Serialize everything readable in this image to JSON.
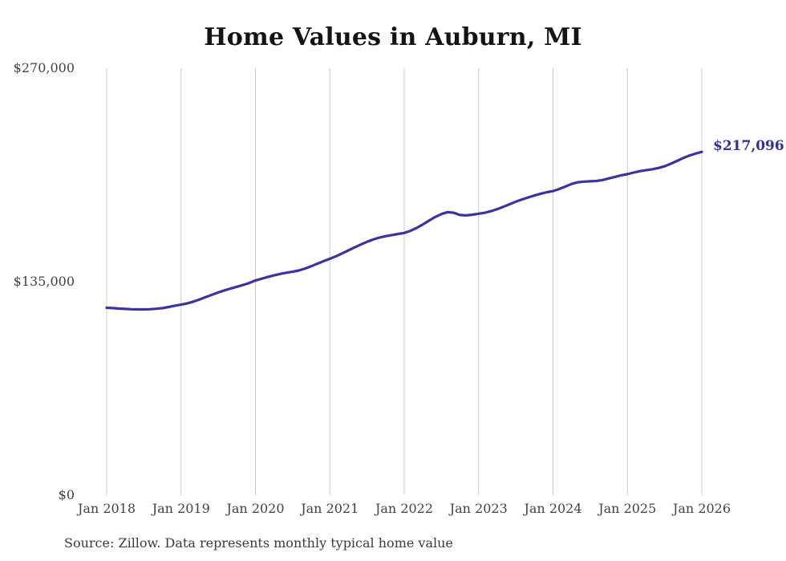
{
  "page": {
    "title": "Home Values in Auburn, MI",
    "source_note": "Source: Zillow. Data represents monthly typical home value"
  },
  "chart_data": {
    "type": "line",
    "title": "Home Values in Auburn, MI",
    "series_name": "Monthly typical home value",
    "xlabel": "",
    "ylabel": "",
    "ylim": [
      0,
      270000
    ],
    "grid": "vertical-only",
    "legend": "none",
    "x_tick_labels": [
      "Jan 2018",
      "Jan 2019",
      "Jan 2020",
      "Jan 2021",
      "Jan 2022",
      "Jan 2023",
      "Jan 2024",
      "Jan 2025",
      "Jan 2026"
    ],
    "y_ticks": [
      {
        "label": "$0",
        "value": 0
      },
      {
        "label": "$135,000",
        "value": 135000
      },
      {
        "label": "$270,000",
        "value": 270000
      }
    ],
    "x_monthly_range": "Jan 2018 to Jan 2026",
    "values": [
      118500,
      118300,
      118000,
      117800,
      117600,
      117500,
      117500,
      117600,
      117900,
      118300,
      119000,
      119800,
      120500,
      121300,
      122400,
      123800,
      125300,
      126800,
      128200,
      129500,
      130700,
      131800,
      132900,
      134200,
      135800,
      136900,
      138000,
      139000,
      139900,
      140700,
      141300,
      142100,
      143300,
      144800,
      146400,
      148000,
      149500,
      151100,
      152900,
      154800,
      156700,
      158500,
      160200,
      161700,
      162900,
      163800,
      164500,
      165200,
      165800,
      167200,
      169000,
      171200,
      173600,
      175900,
      177800,
      179000,
      178600,
      177200,
      176900,
      177400,
      178000,
      178600,
      179600,
      180900,
      182400,
      184000,
      185600,
      187000,
      188300,
      189500,
      190600,
      191600,
      192300,
      193600,
      195200,
      196800,
      197900,
      198300,
      198500,
      198700,
      199300,
      200300,
      201300,
      202300,
      203000,
      204000,
      204900,
      205500,
      206100,
      206900,
      208000,
      209600,
      211400,
      213200,
      214800,
      216000,
      217096
    ],
    "end_label": "$217,096",
    "final_value": 217096,
    "line_color": "#3a34a0",
    "end_label_color": "#33309b",
    "grid_color": "#cccccc"
  }
}
